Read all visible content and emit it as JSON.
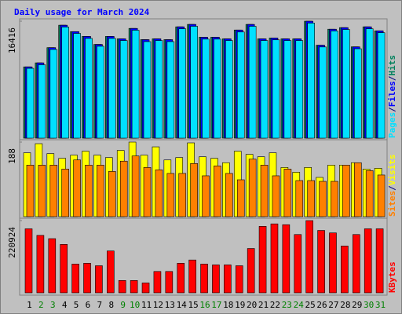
{
  "chart_data": [
    {
      "type": "bar",
      "title": "Daily usage for March 2024",
      "categories": [
        "1",
        "2",
        "3",
        "4",
        "5",
        "6",
        "7",
        "8",
        "9",
        "10",
        "11",
        "12",
        "13",
        "14",
        "15",
        "16",
        "17",
        "18",
        "19",
        "20",
        "21",
        "22",
        "23",
        "24",
        "25",
        "26",
        "27",
        "28",
        "29",
        "30",
        "31"
      ],
      "category_colors": [
        "#000000",
        "#008000",
        "#008000",
        "#000000",
        "#000000",
        "#000000",
        "#000000",
        "#000000",
        "#008000",
        "#008000",
        "#000000",
        "#000000",
        "#000000",
        "#000000",
        "#000000",
        "#008000",
        "#008000",
        "#000000",
        "#000000",
        "#000000",
        "#000000",
        "#000000",
        "#008000",
        "#008000",
        "#000000",
        "#000000",
        "#000000",
        "#000000",
        "#000000",
        "#008000",
        "#008000"
      ],
      "legend_separator": "/",
      "series": [
        {
          "name": "Hits",
          "color": "#00805c",
          "values": [
            10006,
            10569,
            12706,
            15854,
            14954,
            14280,
            13155,
            14280,
            13942,
            15404,
            13830,
            13942,
            13830,
            15629,
            15966,
            14167,
            14167,
            13942,
            15179,
            15966,
            13942,
            14055,
            13942,
            13942,
            16416,
            13043,
            15292,
            15516,
            12818,
            15629,
            15067
          ]
        },
        {
          "name": "Files",
          "color": "#0000ff",
          "values": [
            10006,
            10569,
            12706,
            15854,
            14954,
            14280,
            13155,
            14280,
            13942,
            15404,
            13830,
            13942,
            13830,
            15629,
            15966,
            14167,
            14167,
            13942,
            15179,
            15966,
            13942,
            14055,
            13942,
            13942,
            16416,
            13043,
            15292,
            15516,
            12818,
            15629,
            15067
          ]
        },
        {
          "name": "Pages",
          "color": "#00e0ff",
          "values": [
            9800,
            10300,
            12450,
            15600,
            14700,
            14000,
            12900,
            14000,
            13700,
            15150,
            13550,
            13700,
            13550,
            15350,
            15700,
            13900,
            13900,
            13700,
            14900,
            15700,
            13700,
            13800,
            13700,
            13700,
            16150,
            12800,
            15050,
            15250,
            12550,
            15350,
            14800
          ]
        }
      ],
      "ylim": [
        0,
        16416
      ],
      "yticks": [
        16416
      ]
    },
    {
      "type": "bar",
      "legend_separator": "/",
      "series": [
        {
          "name": "Visits",
          "color": "#ffff00",
          "values": [
            161,
            184,
            159,
            147,
            155,
            165,
            155,
            149,
            167,
            188,
            155,
            176,
            143,
            149,
            186,
            151,
            147,
            136,
            165,
            157,
            151,
            161,
            124,
            112,
            124,
            99,
            130,
            130,
            136,
            120,
            122
          ]
        },
        {
          "name": "Sites",
          "color": "#ff8000",
          "values": [
            130,
            130,
            130,
            120,
            143,
            130,
            130,
            114,
            140,
            153,
            124,
            118,
            109,
            109,
            134,
            103,
            128,
            109,
            93,
            145,
            130,
            103,
            120,
            91,
            91,
            89,
            89,
            130,
            136,
            116,
            105
          ]
        }
      ],
      "ylim": [
        0,
        188
      ],
      "yticks": [
        188
      ]
    },
    {
      "type": "bar",
      "series": [
        {
          "name": "KBytes",
          "color": "#ff0000",
          "values": [
            195819,
            175735,
            165693,
            148120,
            87868,
            90379,
            82847,
            128035,
            37658,
            37658,
            30126,
            65273,
            65273,
            90379,
            100420,
            87868,
            85357,
            85357,
            82847,
            135568,
            203350,
            210882,
            208371,
            178246,
            220924,
            190798,
            183267,
            143099,
            178246,
            195819,
            195819
          ]
        }
      ],
      "ylim": [
        0,
        220924
      ],
      "yticks": [
        220924
      ]
    }
  ]
}
